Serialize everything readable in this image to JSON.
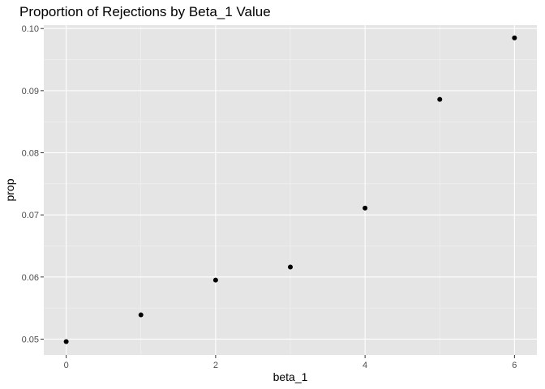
{
  "chart_data": {
    "type": "scatter",
    "title": "Proportion of Rejections by Beta_1 Value",
    "xlabel": "beta_1",
    "ylabel": "prop",
    "x": [
      0,
      1,
      2,
      3,
      4,
      5,
      6
    ],
    "y": [
      0.0496,
      0.0539,
      0.0595,
      0.0616,
      0.0711,
      0.0886,
      0.0985
    ],
    "xlim": [
      -0.3,
      6.3
    ],
    "ylim": [
      0.04745,
      0.10055
    ],
    "x_ticks": [
      0,
      2,
      4,
      6
    ],
    "x_tick_labels": [
      "0",
      "2",
      "4",
      "6"
    ],
    "y_ticks": [
      0.05,
      0.06,
      0.07,
      0.08,
      0.09,
      0.1
    ],
    "y_tick_labels": [
      "0.05",
      "0.06",
      "0.07",
      "0.08",
      "0.09",
      "0.10"
    ],
    "grid": true,
    "point_color": "#000000",
    "panel_color": "#e5e5e5"
  }
}
